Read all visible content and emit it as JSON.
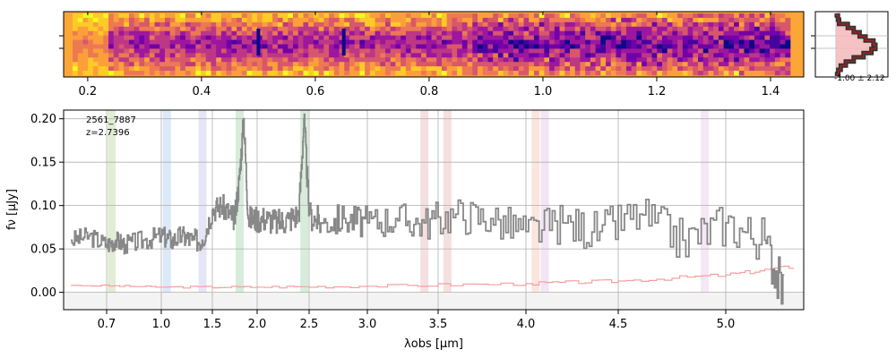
{
  "chart_data": [
    {
      "type": "heatmap",
      "panel": "2D spectrum",
      "colormap": "plasma",
      "xlabel": "",
      "x_ticks": [
        "0.2",
        "0.4",
        "0.6",
        "0.8",
        "1.0",
        "1.2",
        "1.4"
      ],
      "x_tick_positions_data": [
        0.2,
        0.4,
        0.6,
        0.8,
        1.0,
        1.2,
        1.4
      ],
      "emission_lines_columns": [
        0.5,
        0.65
      ]
    },
    {
      "type": "line",
      "panel": "spatial profile",
      "label": "-1.00 ± 2.12",
      "profile_values": [
        0.02,
        0.05,
        0.08,
        0.3,
        0.45,
        0.6,
        0.75,
        0.95,
        1.0,
        0.9,
        0.7,
        0.45,
        0.25,
        0.12,
        0.06,
        0.03
      ]
    },
    {
      "type": "line",
      "panel": "1D spectrum",
      "annotation_lines": [
        "2561_7887",
        "z=2.7396"
      ],
      "xlabel": "λobs [μm]",
      "ylabel": "fν [μJy]",
      "ylim": [
        -0.02,
        0.21
      ],
      "yticks": [
        0.0,
        0.05,
        0.1,
        0.15,
        0.2
      ],
      "ytick_labels": [
        "0.00",
        "0.05",
        "0.10",
        "0.15",
        "0.20"
      ],
      "xticks": [
        0.7,
        1.0,
        1.5,
        2.0,
        2.5,
        3.0,
        3.5,
        4.0,
        4.5,
        5.0
      ],
      "xtick_labels": [
        "0.7",
        "1.0",
        "1.5",
        "2.0",
        "2.5",
        "3.0",
        "3.5",
        "4.0",
        "4.5",
        "5.0"
      ],
      "grid": true,
      "series": [
        {
          "color": "#888888",
          "x": [
            0.6,
            0.65,
            0.7,
            0.75,
            0.8,
            0.9,
            1.0,
            1.1,
            1.2,
            1.3,
            1.4,
            1.5,
            1.6,
            1.7,
            1.75,
            1.8,
            1.85,
            1.9,
            2.0,
            2.1,
            2.2,
            2.3,
            2.4,
            2.45,
            2.5,
            2.6,
            2.8,
            3.0,
            3.2,
            3.4,
            3.6,
            3.8,
            4.0,
            4.2,
            4.4,
            4.6,
            4.8,
            5.0,
            5.2,
            5.3
          ],
          "y": [
            0.06,
            0.065,
            0.055,
            0.06,
            0.055,
            0.06,
            0.065,
            0.06,
            0.065,
            0.06,
            0.06,
            0.095,
            0.1,
            0.09,
            0.085,
            0.13,
            0.2,
            0.085,
            0.085,
            0.085,
            0.08,
            0.085,
            0.09,
            0.2,
            0.09,
            0.08,
            0.085,
            0.08,
            0.085,
            0.08,
            0.09,
            0.085,
            0.07,
            0.08,
            0.07,
            0.09,
            0.06,
            0.08,
            0.06,
            -0.005
          ]
        },
        {
          "color": "#f4a0a0",
          "x": [
            0.6,
            1.0,
            2.0,
            3.0,
            4.0,
            4.5,
            5.0,
            5.35
          ],
          "y": [
            0.008,
            0.006,
            0.006,
            0.007,
            0.01,
            0.013,
            0.02,
            0.03
          ]
        }
      ],
      "shaded_bands": [
        {
          "x": 0.725,
          "color": "#d8e7c8"
        },
        {
          "x": 1.05,
          "color": "#cfe2f5"
        },
        {
          "x": 1.4,
          "color": "#dcdcf2"
        },
        {
          "x": 1.8,
          "color": "#c9e6cf"
        },
        {
          "x": 2.45,
          "color": "#c9e6cf"
        },
        {
          "x": 3.4,
          "color": "#f2d6d6"
        },
        {
          "x": 3.55,
          "color": "#f2d6d6"
        },
        {
          "x": 4.05,
          "color": "#f9dcd2"
        },
        {
          "x": 4.1,
          "color": "#eedcf0"
        },
        {
          "x": 4.9,
          "color": "#f2e0f2"
        }
      ]
    }
  ]
}
